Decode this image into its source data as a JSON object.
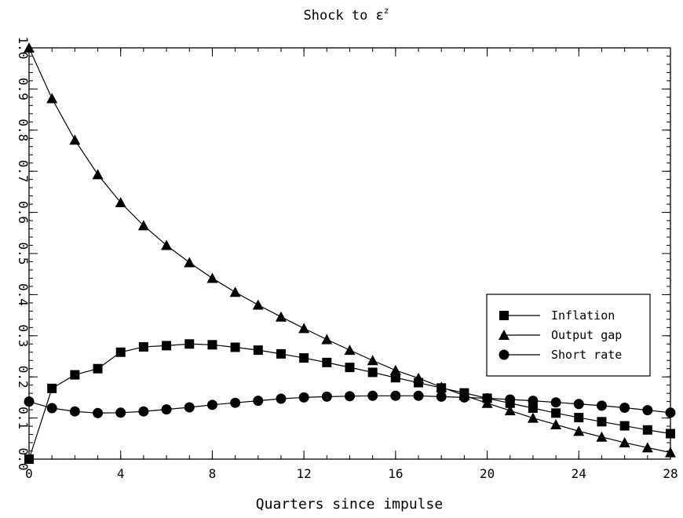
{
  "chart_data": {
    "type": "line",
    "title": "Shock to ε",
    "title_superscript": "z",
    "xlabel": "Quarters since impulse",
    "ylabel": "",
    "xlim": [
      0,
      28
    ],
    "ylim": [
      0.0,
      1.0
    ],
    "xticks": [
      0,
      4,
      8,
      12,
      16,
      20,
      24,
      28
    ],
    "yticks": [
      0.0,
      0.1,
      0.2,
      0.3,
      0.4,
      0.5,
      0.6,
      0.7,
      0.8,
      0.9,
      1.0
    ],
    "grid": false,
    "legend_position": "right",
    "x": [
      0,
      1,
      2,
      3,
      4,
      5,
      6,
      7,
      8,
      9,
      10,
      11,
      12,
      13,
      14,
      15,
      16,
      17,
      18,
      19,
      20,
      21,
      22,
      23,
      24,
      25,
      26,
      27,
      28
    ],
    "series": [
      {
        "name": "Inflation",
        "marker": "square",
        "values": [
          0.0,
          0.172,
          0.205,
          0.22,
          0.26,
          0.273,
          0.276,
          0.28,
          0.278,
          0.272,
          0.265,
          0.256,
          0.246,
          0.235,
          0.223,
          0.211,
          0.198,
          0.186,
          0.173,
          0.161,
          0.148,
          0.136,
          0.124,
          0.112,
          0.101,
          0.091,
          0.081,
          0.071,
          0.062
        ]
      },
      {
        "name": "Output gap",
        "marker": "triangle",
        "values": [
          1.0,
          0.877,
          0.776,
          0.692,
          0.624,
          0.568,
          0.52,
          0.478,
          0.44,
          0.406,
          0.375,
          0.346,
          0.318,
          0.291,
          0.265,
          0.24,
          0.216,
          0.197,
          0.175,
          0.155,
          0.136,
          0.118,
          0.1,
          0.084,
          0.068,
          0.054,
          0.04,
          0.028,
          0.016
        ]
      },
      {
        "name": "Short rate",
        "marker": "circle",
        "values": [
          0.14,
          0.124,
          0.116,
          0.112,
          0.113,
          0.116,
          0.121,
          0.126,
          0.132,
          0.137,
          0.142,
          0.147,
          0.15,
          0.152,
          0.153,
          0.154,
          0.154,
          0.154,
          0.152,
          0.15,
          0.148,
          0.145,
          0.142,
          0.138,
          0.134,
          0.13,
          0.125,
          0.119,
          0.113
        ]
      }
    ]
  }
}
